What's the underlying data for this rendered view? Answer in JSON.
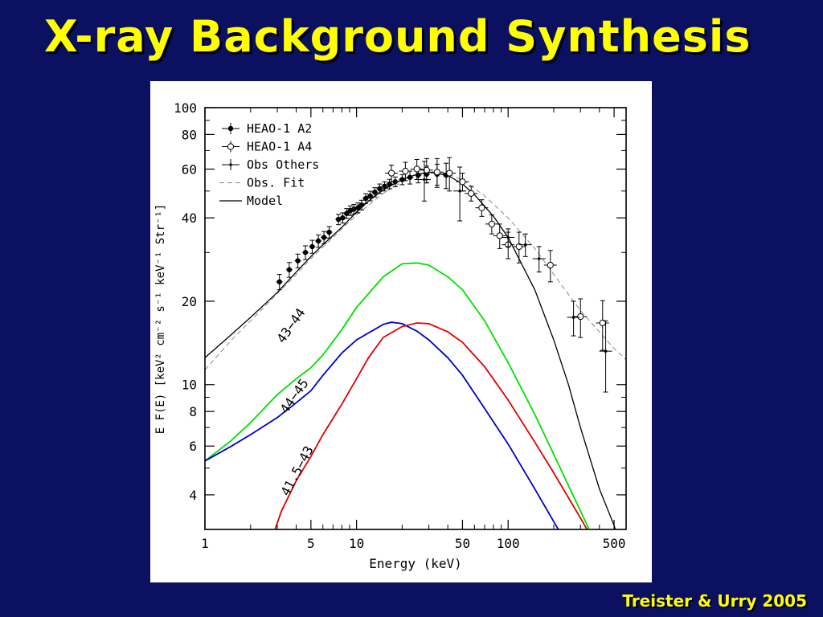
{
  "slide": {
    "title": "X-ray Background Synthesis",
    "credit": "Treister & Urry 2005"
  },
  "colors": {
    "background": "#0b1060",
    "title": "#ffff00",
    "panel": "#ffffff",
    "green": "#00e000",
    "blue": "#0000cc",
    "red": "#e00000"
  },
  "chart_data": {
    "type": "line",
    "xlabel": "Energy (keV)",
    "ylabel": "E F(E) [keV² cm⁻² s⁻¹ keV⁻¹ Str⁻¹]",
    "xscale": "log",
    "yscale": "log",
    "xlim": [
      1,
      600
    ],
    "ylim": [
      3,
      100
    ],
    "xticks": [
      1,
      5,
      10,
      50,
      100,
      500
    ],
    "xtick_labels": [
      "1",
      "5",
      "10",
      "50",
      "100",
      "500"
    ],
    "yticks": [
      4,
      6,
      8,
      10,
      20,
      40,
      60,
      80,
      100
    ],
    "ytick_labels": [
      "4",
      "6",
      "8",
      "10",
      "20",
      "40",
      "60",
      "80",
      "100"
    ],
    "legend_position": "top-left",
    "legend": [
      "HEAO-1 A2",
      "HEAO-1 A4",
      "Obs Others",
      "Obs. Fit",
      "Model"
    ],
    "series": [
      {
        "name": "Model",
        "style": "solid",
        "color": "#000000",
        "x": [
          1,
          1.5,
          2,
          3,
          4,
          5,
          6,
          8,
          10,
          12,
          15,
          20,
          25,
          30,
          40,
          50,
          60,
          80,
          100,
          150,
          200,
          250,
          300,
          400,
          500,
          550
        ],
        "y": [
          12.5,
          15.2,
          17.5,
          21.5,
          25.5,
          29,
          32,
          37,
          42,
          46,
          50.5,
          55,
          57.5,
          58.5,
          57,
          53,
          48.5,
          40.5,
          34,
          22,
          14.5,
          10,
          7,
          4.2,
          3.1,
          2.6
        ]
      },
      {
        "name": "Obs. Fit",
        "style": "dashed",
        "color": "#888888",
        "x": [
          1,
          1.5,
          2,
          3,
          4,
          5,
          7,
          10,
          15,
          20,
          30,
          40,
          50,
          70,
          100,
          150,
          200,
          300,
          400,
          500,
          600
        ],
        "y": [
          11.3,
          14.5,
          17,
          21.3,
          25,
          28.5,
          34,
          41,
          49,
          54,
          58.5,
          57.5,
          55,
          48,
          40,
          31,
          25,
          18.5,
          15.5,
          13.5,
          12.3
        ]
      },
      {
        "name": "43-44",
        "color": "#00e000",
        "x": [
          1,
          1.5,
          2,
          3,
          4,
          5,
          6,
          8,
          10,
          15,
          20,
          25,
          30,
          40,
          50,
          70,
          100,
          150,
          200,
          300,
          400
        ],
        "y": [
          5.3,
          6.3,
          7.3,
          9.2,
          10.5,
          11.5,
          12.8,
          15.8,
          19,
          24.5,
          27.3,
          27.5,
          27,
          24.5,
          22,
          17,
          12,
          7.8,
          5.6,
          3.5,
          2.5
        ]
      },
      {
        "name": "44-45",
        "color": "#0000cc",
        "x": [
          1,
          1.5,
          2,
          3,
          4,
          5,
          6,
          8,
          10,
          15,
          17,
          20,
          25,
          30,
          40,
          50,
          70,
          100,
          150,
          200,
          250
        ],
        "y": [
          5.3,
          6,
          6.6,
          7.6,
          8.6,
          9.5,
          10.8,
          13,
          14.5,
          16.5,
          16.8,
          16.6,
          15.6,
          14.5,
          12.5,
          10.8,
          8.2,
          6.1,
          4.2,
          3.2,
          2.6
        ]
      },
      {
        "name": "41.5-43",
        "color": "#e00000",
        "x": [
          2.9,
          3.2,
          4,
          5,
          6,
          8,
          10,
          12,
          15,
          20,
          25,
          30,
          40,
          50,
          70,
          100,
          150,
          200,
          300,
          400
        ],
        "y": [
          3,
          3.5,
          4.5,
          5.5,
          6.6,
          8.5,
          10.5,
          12.5,
          14.8,
          16.2,
          16.7,
          16.6,
          15.5,
          14.2,
          11.6,
          8.8,
          6.2,
          4.8,
          3.3,
          2.5
        ]
      }
    ],
    "data_sets": [
      {
        "name": "HEAO-1 A2",
        "marker": "filled-circle",
        "points": [
          {
            "x": 3.1,
            "y": 23.5,
            "yerr": 1.5
          },
          {
            "x": 3.6,
            "y": 26,
            "yerr": 1.6
          },
          {
            "x": 4.1,
            "y": 28,
            "yerr": 1.6
          },
          {
            "x": 4.6,
            "y": 30,
            "yerr": 1.7
          },
          {
            "x": 5.1,
            "y": 31.5,
            "yerr": 1.7
          },
          {
            "x": 5.6,
            "y": 33,
            "yerr": 1.7
          },
          {
            "x": 6.1,
            "y": 34,
            "yerr": 1.7
          },
          {
            "x": 6.6,
            "y": 35.5,
            "yerr": 1.7
          },
          {
            "x": 7.6,
            "y": 39.5,
            "yerr": 1.7
          },
          {
            "x": 8.1,
            "y": 40,
            "yerr": 1.7
          },
          {
            "x": 8.6,
            "y": 41.5,
            "yerr": 1.7
          },
          {
            "x": 9.1,
            "y": 42.5,
            "yerr": 1.7
          },
          {
            "x": 9.6,
            "y": 43,
            "yerr": 1.7
          },
          {
            "x": 10.2,
            "y": 43.5,
            "yerr": 1.8
          },
          {
            "x": 10.8,
            "y": 44.5,
            "yerr": 1.8
          },
          {
            "x": 11.5,
            "y": 47,
            "yerr": 1.9
          },
          {
            "x": 12.3,
            "y": 48,
            "yerr": 1.9
          },
          {
            "x": 13.2,
            "y": 49.5,
            "yerr": 1.9
          },
          {
            "x": 14.2,
            "y": 51,
            "yerr": 2
          },
          {
            "x": 15.3,
            "y": 52,
            "yerr": 2
          },
          {
            "x": 16.5,
            "y": 53,
            "yerr": 2.1
          },
          {
            "x": 18,
            "y": 54,
            "yerr": 2.2
          },
          {
            "x": 20,
            "y": 55,
            "yerr": 2.3
          },
          {
            "x": 22.5,
            "y": 56,
            "yerr": 3
          },
          {
            "x": 25.5,
            "y": 57,
            "yerr": 3.5
          },
          {
            "x": 29,
            "y": 57.5,
            "yerr": 4
          },
          {
            "x": 34,
            "y": 57.5,
            "yerr": 5
          },
          {
            "x": 39,
            "y": 57,
            "yerr": 6
          }
        ]
      },
      {
        "name": "HEAO-1 A4",
        "marker": "open-circle",
        "points": [
          {
            "x": 17,
            "y": 58,
            "yerr": 4
          },
          {
            "x": 21,
            "y": 59,
            "yerr": 4.5
          },
          {
            "x": 25,
            "y": 60,
            "yerr": 5
          },
          {
            "x": 29,
            "y": 59.5,
            "yerr": 6
          },
          {
            "x": 34,
            "y": 58.5,
            "yerr": 7
          },
          {
            "x": 41,
            "y": 58,
            "yerr": 8
          },
          {
            "x": 50,
            "y": 54,
            "yerr": 4
          },
          {
            "x": 57,
            "y": 49,
            "yerr": 3
          },
          {
            "x": 67,
            "y": 43.5,
            "yerr": 3
          },
          {
            "x": 78,
            "y": 38,
            "yerr": 3
          },
          {
            "x": 88,
            "y": 34.5,
            "yerr": 3.5
          },
          {
            "x": 100,
            "y": 32,
            "yerr": 3.5
          },
          {
            "x": 118,
            "y": 31.5,
            "yerr": 4
          },
          {
            "x": 190,
            "y": 27,
            "yerr": 3.5
          },
          {
            "x": 300,
            "y": 17.6,
            "yerr": 2.8
          },
          {
            "x": 420,
            "y": 16.7,
            "yerr": 3.4
          }
        ]
      },
      {
        "name": "Obs Others",
        "marker": "dot",
        "points": [
          {
            "x": 28,
            "y": 55,
            "yerr": 9
          },
          {
            "x": 48,
            "y": 50,
            "yerr": 11
          },
          {
            "x": 100,
            "y": 34,
            "yerr": 2.5
          },
          {
            "x": 130,
            "y": 32,
            "yerr": 3
          },
          {
            "x": 160,
            "y": 28.5,
            "yerr": 3
          },
          {
            "x": 270,
            "y": 17.5,
            "yerr": 2.5
          },
          {
            "x": 440,
            "y": 13.2,
            "yerr": 3.8
          }
        ]
      }
    ],
    "annotations": [
      {
        "text": "43−44",
        "x": 3.9,
        "y": 16,
        "angle": -55
      },
      {
        "text": "44−45",
        "x": 4.1,
        "y": 8.9,
        "angle": -55
      },
      {
        "text": "41.5−43",
        "x": 4.3,
        "y": 4.8,
        "angle": -62
      }
    ]
  }
}
